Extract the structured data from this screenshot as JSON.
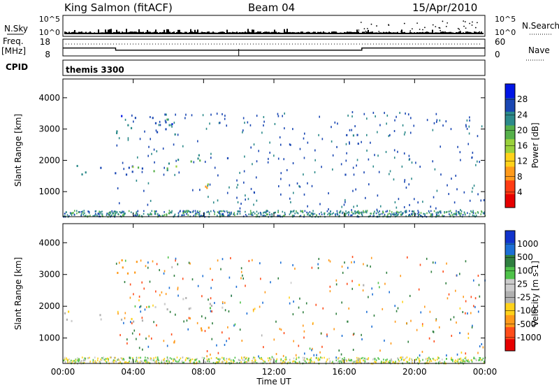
{
  "header": {
    "station": "King Salmon (fitACF)",
    "beam": "Beam 04",
    "date": "15/Apr/2010"
  },
  "top_panels": {
    "nsky_label": "N.Sky",
    "nsearch_label": "N.Search",
    "counts_ticks": [
      "10^5",
      "10^0"
    ],
    "freq_label": "Freq.",
    "freq_unit": "[MHz]",
    "freq_ticks": [
      "18",
      "8"
    ],
    "nave_label": "Nave",
    "nave_ticks": [
      "60",
      "0"
    ],
    "cpid_label": "CPID",
    "cpid_value": "themis 3300",
    "freq_trace_mhz": [
      [
        0,
        12.7
      ],
      [
        3,
        12.7
      ],
      [
        3,
        11.4
      ],
      [
        17,
        11.4
      ],
      [
        17,
        12.7
      ],
      [
        24,
        12.7
      ]
    ]
  },
  "chart_data": [
    {
      "type": "heatmap",
      "title": "Power",
      "ylabel": "Slant Range [km]",
      "ylim": [
        200,
        4600
      ],
      "xlim": [
        0,
        24
      ],
      "colorbar_label": "Power [dB]",
      "colorbar_ticks": [
        "28",
        "24",
        "20",
        "16",
        "12",
        "8",
        "4"
      ],
      "colors": [
        "#0015e6",
        "#1a47b3",
        "#2c8a8a",
        "#56b04a",
        "#9ad13b",
        "#ffd21a",
        "#ff9a1a",
        "#ff3c14",
        "#e60000"
      ],
      "regions": [
        {
          "x": [
            0.0,
            4.5
          ],
          "y": [
            1500,
            1900
          ],
          "level": 4
        },
        {
          "x": [
            3.2,
            6.5
          ],
          "y": [
            1650,
            2050
          ],
          "level": 12
        },
        {
          "x": [
            6.5,
            9.5
          ],
          "y": [
            1950,
            2300
          ],
          "level": 10
        },
        {
          "x": [
            7.6,
            8.6
          ],
          "y": [
            950,
            1400
          ],
          "level": 22
        },
        {
          "x": [
            3.0,
            6.5
          ],
          "y": [
            2700,
            3500
          ],
          "level": 6
        },
        {
          "x": [
            15.8,
            17.2
          ],
          "y": [
            2500,
            3000
          ],
          "level": 4
        },
        {
          "x": [
            15.9,
            16.3
          ],
          "y": [
            1300,
            1700
          ],
          "level": 6
        }
      ]
    },
    {
      "type": "heatmap",
      "title": "Velocity",
      "ylabel": "Slant Range [km]",
      "xlabel": "Time UT",
      "ylim": [
        200,
        4600
      ],
      "xlim": [
        0,
        24
      ],
      "x_ticks": [
        "00:00",
        "04:00",
        "08:00",
        "12:00",
        "16:00",
        "20:00",
        "00:00"
      ],
      "colorbar_label": "Velocity [m s-1]",
      "colorbar_ticks": [
        "1000",
        "500",
        "100",
        "25",
        "-25",
        "-100",
        "-500",
        "-1000"
      ],
      "colors": [
        "#1133cc",
        "#1c6fd6",
        "#2f7f3f",
        "#4fc24a",
        "#cccccc",
        "#b0b0b0",
        "#ffd21a",
        "#ff9a1a",
        "#ff4d1a",
        "#e60000"
      ],
      "regions": [
        {
          "x": [
            0.0,
            4.5
          ],
          "y": [
            1500,
            1900
          ],
          "v": 0
        },
        {
          "x": [
            4.0,
            9.5
          ],
          "y": [
            1900,
            2300
          ],
          "v": 0
        },
        {
          "x": [
            7.6,
            8.6
          ],
          "y": [
            950,
            1400
          ],
          "v": -300
        },
        {
          "x": [
            6.0,
            7.0
          ],
          "y": [
            800,
            900
          ],
          "v": -300
        },
        {
          "x": [
            3.0,
            5.0
          ],
          "y": [
            3000,
            3500
          ],
          "v": -200
        },
        {
          "x": [
            15.8,
            17.2
          ],
          "y": [
            2600,
            2900
          ],
          "v": 0
        },
        {
          "x": [
            15.9,
            16.3
          ],
          "y": [
            1400,
            1650
          ],
          "v": 200
        }
      ]
    }
  ]
}
